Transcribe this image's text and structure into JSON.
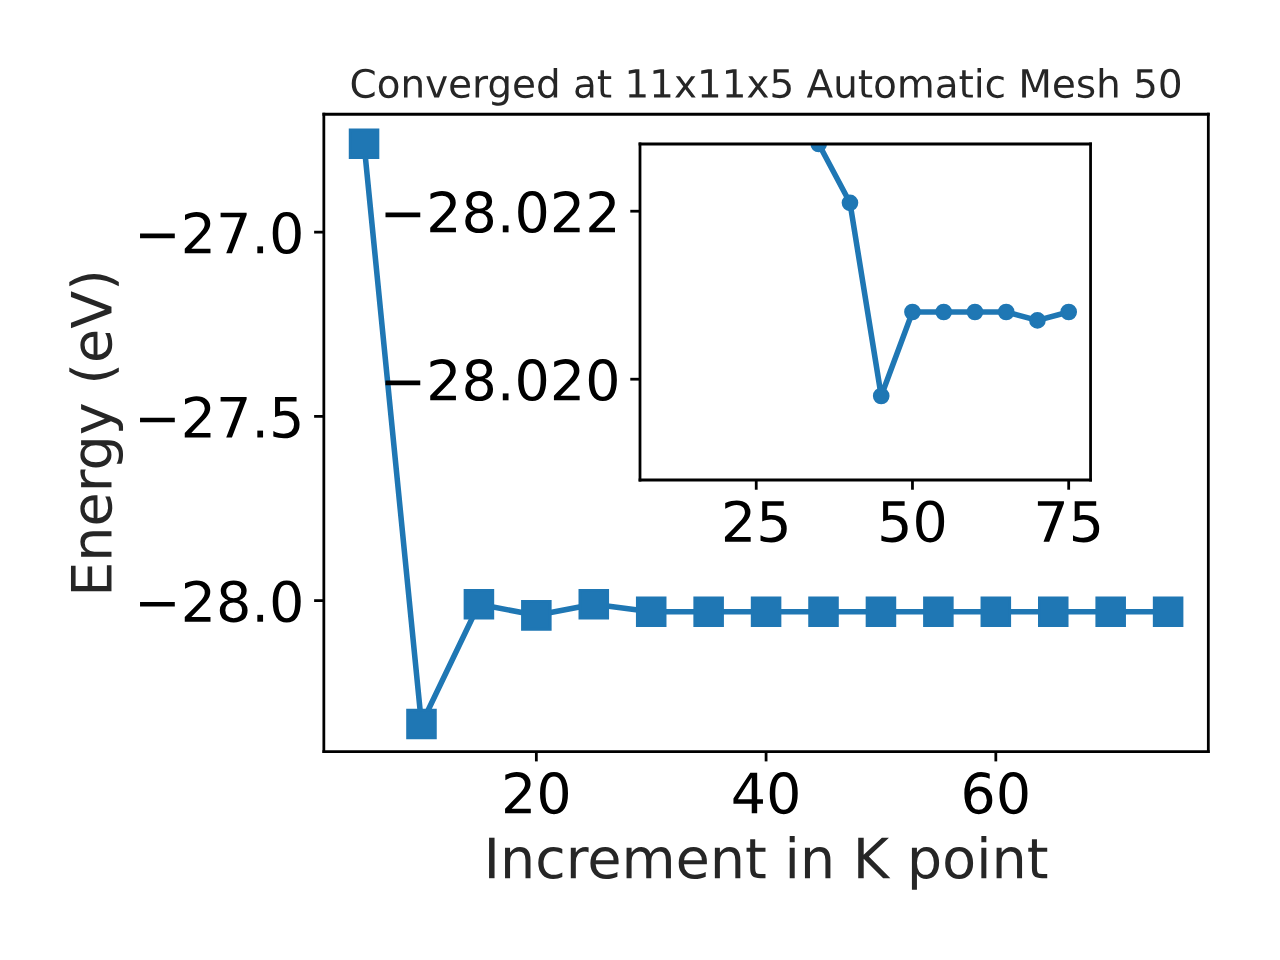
{
  "chart_data": [
    {
      "type": "line",
      "title": "Converged at 11x11x5 Automatic Mesh 50",
      "xlabel": "Increment in K point",
      "ylabel": "Energy (eV)",
      "x": [
        5,
        10,
        15,
        20,
        25,
        30,
        35,
        40,
        45,
        50,
        55,
        60,
        65,
        70,
        75
      ],
      "series": [
        {
          "color": "#1f77b4",
          "values": [
            -26.76,
            -28.335,
            -28.01,
            -28.04,
            -28.01,
            -28.03,
            -28.03,
            -28.03,
            -28.03,
            -28.03,
            -28.03,
            -28.03,
            -28.03,
            -28.03,
            -28.03
          ]
        }
      ],
      "marker": "square",
      "xlim": [
        1.5,
        78.5
      ],
      "ylim": [
        -28.41,
        -26.68
      ],
      "xticks": [
        20,
        40,
        60
      ],
      "yticks": [
        {
          "value": -27.0,
          "label": "−27.0"
        },
        {
          "value": -27.5,
          "label": "−27.5"
        },
        {
          "value": -28.0,
          "label": "−28.0"
        }
      ],
      "grid": false
    },
    {
      "type": "line",
      "x": [
        35,
        40,
        45,
        50,
        55,
        60,
        65,
        70,
        75
      ],
      "series": [
        {
          "color": "#1f77b4",
          "values": [
            -28.0228,
            -28.0221,
            -28.0198,
            -28.0208,
            -28.0208,
            -28.0208,
            -28.0208,
            -28.0207,
            -28.0208
          ]
        }
      ],
      "marker": "circle",
      "xlim": [
        6.4,
        78.5
      ],
      "ylim": [
        -28.0188,
        -28.0228
      ],
      "xticks": [
        25,
        50,
        75
      ],
      "yticks": [
        {
          "value": -28.022,
          "label": "−28.022"
        },
        {
          "value": -28.02,
          "label": "−28.020"
        }
      ],
      "grid": false
    }
  ]
}
